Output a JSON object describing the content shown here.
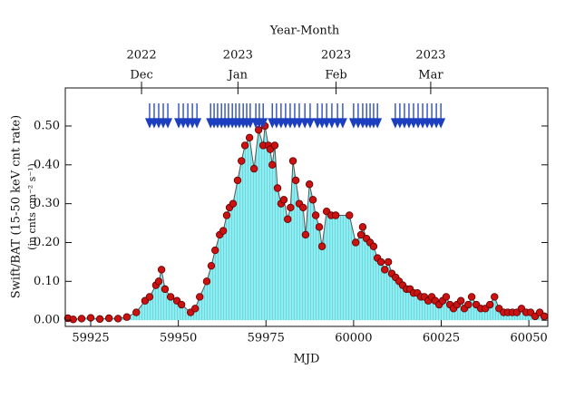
{
  "chart_data": {
    "type": "line",
    "x_label": "MJD",
    "y_label": "Swift/BAT (15-50 keV cnt rate)",
    "y_sublabel": "(in cnts cm⁻² s⁻¹)",
    "x2_label": "Year-Month",
    "xlim": [
      59917.75,
      60055.4
    ],
    "ylim": [
      -0.016,
      0.598
    ],
    "xticks": [
      59925,
      59950,
      59975,
      60000,
      60025,
      60050
    ],
    "yticks": [
      {
        "value": 0,
        "label": "0.00"
      },
      {
        "value": 0.1,
        "label": "0.10"
      },
      {
        "value": 0.2,
        "label": "0.20"
      },
      {
        "value": 0.3,
        "label": "0.30"
      },
      {
        "value": 0.4,
        "label": "0.40"
      },
      {
        "value": 0.5,
        "label": "0.50"
      }
    ],
    "x2ticks": [
      {
        "value": 59939.5,
        "label": "Dec"
      },
      {
        "value": 59967,
        "label": "Jan"
      },
      {
        "value": 59995,
        "label": "Feb"
      },
      {
        "value": 60022,
        "label": "Mar"
      }
    ],
    "x2tick_years": [
      "2022",
      "2023",
      "2023",
      "2023"
    ],
    "marker_color": "#cc1111",
    "fill_color": "#84f2f4",
    "line_color": "#555555",
    "arrow_color": "#1c3fc0",
    "x": [
      59918.5,
      59920,
      59922.4,
      59925,
      59927.6,
      59930.2,
      59932.8,
      59935.3,
      59938,
      59940.5,
      59941.8,
      59943.6,
      59944.4,
      59945.2,
      59946.2,
      59947.8,
      59949.6,
      59950.9,
      59953.5,
      59954.8,
      59956.1,
      59958.1,
      59959.4,
      59960.5,
      59961.8,
      59962.8,
      59963.8,
      59964.6,
      59965.6,
      59966.9,
      59968,
      59969,
      59970.3,
      59971.6,
      59972.9,
      59974.2,
      59974.7,
      59975.7,
      59976.2,
      59976.8,
      59977.5,
      59978.3,
      59979.3,
      59980.1,
      59981.2,
      59982,
      59982.7,
      59983.5,
      59984.5,
      59985.6,
      59986.3,
      59987.4,
      59988.4,
      59989.2,
      59990.2,
      59991,
      59992.3,
      59993.6,
      59994.9,
      59998.8,
      60000.6,
      60002.1,
      60002.6,
      60003.7,
      60004.7,
      60005.7,
      60006.8,
      60007.8,
      60008.9,
      60009.9,
      60010.9,
      60012,
      60013,
      60014,
      60015.1,
      60016.1,
      60017.1,
      60018.2,
      60019.2,
      60020.2,
      60021.3,
      60022.3,
      60023.3,
      60024.4,
      60025.4,
      60026.4,
      60027.5,
      60028.5,
      60029.5,
      60030.6,
      60031.6,
      60032.7,
      60033.7,
      60035,
      60036.3,
      60037.6,
      60038.9,
      60040.2,
      60041.5,
      60042.8,
      60044,
      60045.3,
      60046.6,
      60047.9,
      60049.2,
      60050.5,
      60051.8,
      60053.1,
      60054.4
    ],
    "values": [
      0.005,
      0.002,
      0.004,
      0.006,
      0.003,
      0.005,
      0.004,
      0.008,
      0.02,
      0.05,
      0.06,
      0.09,
      0.1,
      0.13,
      0.08,
      0.06,
      0.05,
      0.04,
      0.02,
      0.03,
      0.06,
      0.1,
      0.14,
      0.18,
      0.22,
      0.23,
      0.27,
      0.29,
      0.3,
      0.36,
      0.41,
      0.45,
      0.47,
      0.39,
      0.49,
      0.45,
      0.5,
      0.45,
      0.44,
      0.4,
      0.45,
      0.34,
      0.3,
      0.31,
      0.26,
      0.29,
      0.41,
      0.36,
      0.3,
      0.29,
      0.22,
      0.35,
      0.31,
      0.27,
      0.24,
      0.19,
      0.28,
      0.27,
      0.27,
      0.27,
      0.2,
      0.22,
      0.24,
      0.21,
      0.2,
      0.19,
      0.16,
      0.15,
      0.13,
      0.15,
      0.12,
      0.11,
      0.1,
      0.09,
      0.08,
      0.08,
      0.07,
      0.07,
      0.06,
      0.06,
      0.05,
      0.06,
      0.05,
      0.04,
      0.05,
      0.06,
      0.04,
      0.03,
      0.04,
      0.05,
      0.03,
      0.04,
      0.06,
      0.04,
      0.03,
      0.03,
      0.04,
      0.06,
      0.03,
      0.02,
      0.02,
      0.02,
      0.02,
      0.03,
      0.02,
      0.02,
      0.01,
      0.02,
      0.01
    ],
    "arrows_x": [
      59941.8,
      59943.1,
      59944.4,
      59945.7,
      59947.0,
      59950.1,
      59951.4,
      59952.7,
      59954.0,
      59955.3,
      59959.2,
      59960.2,
      59961.2,
      59962.3,
      59963.3,
      59964.3,
      59965.4,
      59966.4,
      59967.4,
      59968.5,
      59969.5,
      59970.5,
      59972.1,
      59973.1,
      59974.2,
      59976.8,
      59978.0,
      59979.3,
      59980.6,
      59981.9,
      59983.2,
      59984.5,
      59986.1,
      59987.6,
      59989.7,
      59991.0,
      59992.3,
      59993.8,
      59995.4,
      59996.9,
      60000.0,
      60001.3,
      60002.6,
      60003.7,
      60004.7,
      60005.7,
      60006.8,
      60011.9,
      60013.2,
      60014.5,
      60015.8,
      60017.1,
      60018.4,
      60019.7,
      60021.0,
      60022.3,
      60023.6,
      60024.9
    ]
  }
}
